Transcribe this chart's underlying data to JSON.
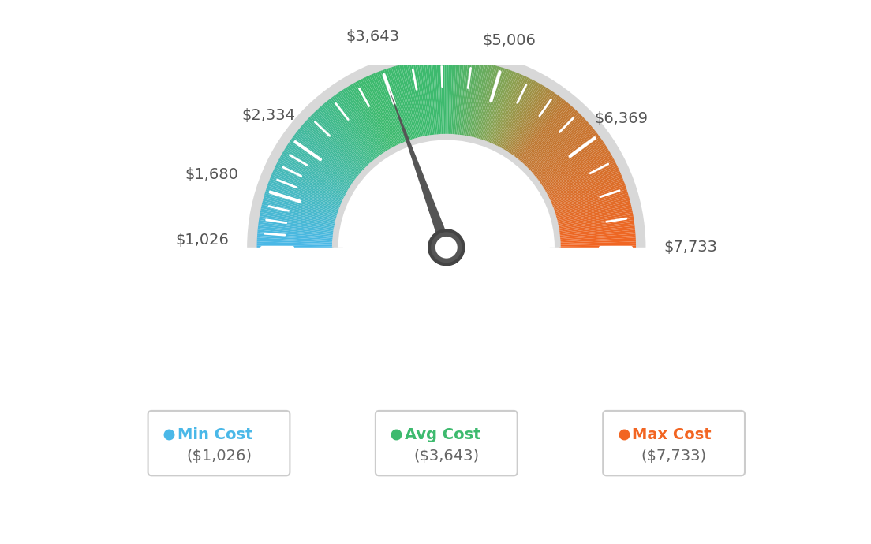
{
  "min_val": 1026,
  "max_val": 7733,
  "avg_val": 3643,
  "label_values": [
    1026,
    1680,
    2334,
    3643,
    5006,
    6369,
    7733
  ],
  "label_texts": [
    "$1,026",
    "$1,680",
    "$2,334",
    "$3,643",
    "$5,006",
    "$6,369",
    "$7,733"
  ],
  "legend": [
    {
      "label": "Min Cost",
      "value": "($1,026)",
      "color": "#4ab8e8"
    },
    {
      "label": "Avg Cost",
      "value": "($3,643)",
      "color": "#3dba6e"
    },
    {
      "label": "Max Cost",
      "value": "($7,733)",
      "color": "#f26522"
    }
  ],
  "background_color": "#ffffff",
  "needle_color": "#555555",
  "color_stops": [
    [
      0.0,
      [
        74,
        184,
        232
      ]
    ],
    [
      0.35,
      [
        61,
        186,
        110
      ]
    ],
    [
      0.5,
      [
        61,
        186,
        110
      ]
    ],
    [
      0.62,
      [
        140,
        160,
        80
      ]
    ],
    [
      0.72,
      [
        190,
        120,
        50
      ]
    ],
    [
      1.0,
      [
        242,
        101,
        34
      ]
    ]
  ]
}
